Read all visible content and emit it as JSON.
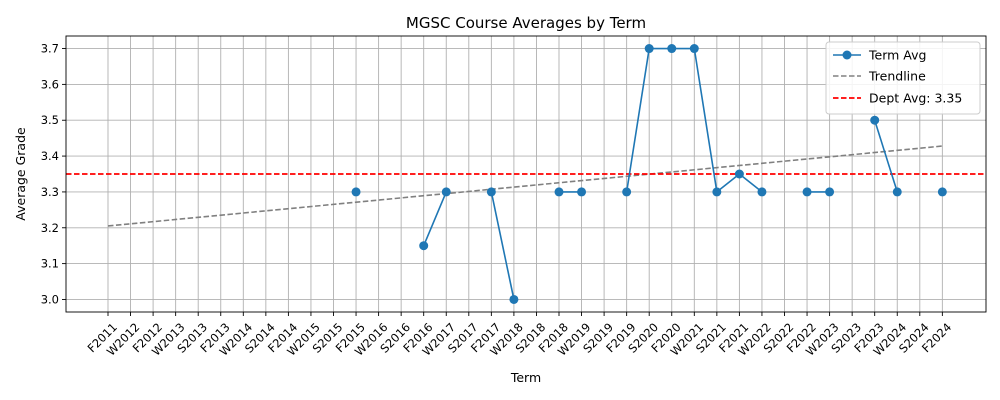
{
  "chart_data": {
    "type": "line",
    "title": "MGSC Course Averages by Term",
    "xlabel": "Term",
    "ylabel": "Average Grade",
    "categories": [
      "F2011",
      "W2012",
      "F2012",
      "W2013",
      "S2013",
      "F2013",
      "W2014",
      "S2014",
      "F2014",
      "W2015",
      "S2015",
      "F2015",
      "W2016",
      "S2016",
      "F2016",
      "W2017",
      "S2017",
      "F2017",
      "W2018",
      "S2018",
      "F2018",
      "W2019",
      "S2019",
      "F2019",
      "S2020",
      "F2020",
      "W2021",
      "S2021",
      "F2021",
      "W2022",
      "S2022",
      "F2022",
      "W2023",
      "S2023",
      "F2023",
      "W2024",
      "S2024",
      "F2024"
    ],
    "ylim": [
      2.965,
      3.735
    ],
    "yticks": [
      "3.0",
      "3.1",
      "3.2",
      "3.3",
      "3.4",
      "3.5",
      "3.6",
      "3.7"
    ],
    "grid": true,
    "legend_position": "top-right",
    "series": [
      {
        "name": "Term Avg",
        "color": "#1f77b4",
        "style": "solid-with-markers",
        "values": [
          null,
          null,
          null,
          null,
          null,
          null,
          null,
          null,
          null,
          null,
          null,
          3.3,
          null,
          null,
          3.15,
          3.3,
          null,
          3.3,
          3.0,
          null,
          3.3,
          3.3,
          null,
          3.3,
          3.7,
          3.7,
          3.7,
          3.3,
          3.35,
          3.3,
          null,
          3.3,
          3.3,
          null,
          3.5,
          3.3,
          null,
          3.3
        ]
      },
      {
        "name": "Trendline",
        "color": "#808080",
        "style": "dashed",
        "start": {
          "x": "F2011",
          "y": 3.205
        },
        "end": {
          "x": "F2024",
          "y": 3.428
        }
      },
      {
        "name": "Dept Avg: 3.35",
        "color": "#ff0000",
        "style": "dashed-horizontal",
        "y": 3.35
      }
    ]
  }
}
